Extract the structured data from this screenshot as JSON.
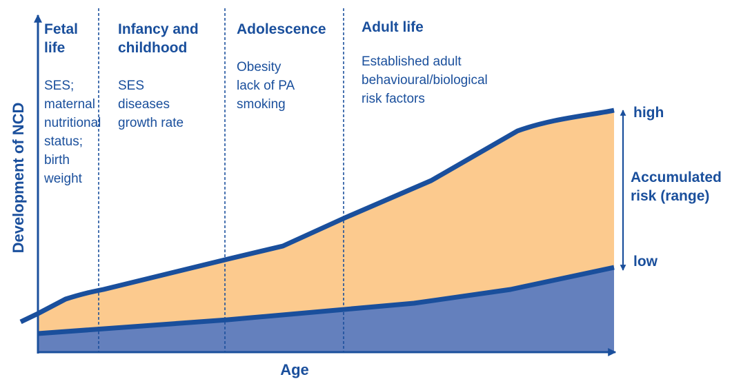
{
  "colors": {
    "primary_blue": "#1a4f9c",
    "risk_band_fill": "#fcca8e",
    "baseline_fill": "#6480bd"
  },
  "axes": {
    "y_label": "Development of NCD",
    "x_label": "Age"
  },
  "stages": [
    {
      "title": "Fetal\nlife",
      "description": "SES;\nmaternal\nnutritional\nstatus;\nbirth\nweight"
    },
    {
      "title": "Infancy and\nchildhood",
      "description": "SES\ndiseases\ngrowth rate"
    },
    {
      "title": "Adolescence",
      "description": "Obesity\nlack of PA\nsmoking"
    },
    {
      "title": "Adult life",
      "description": "Established adult\nbehavioural/biological\nrisk factors"
    }
  ],
  "range": {
    "high_label": "high",
    "low_label": "low",
    "range_label": "Accumulated\nrisk (range)"
  }
}
